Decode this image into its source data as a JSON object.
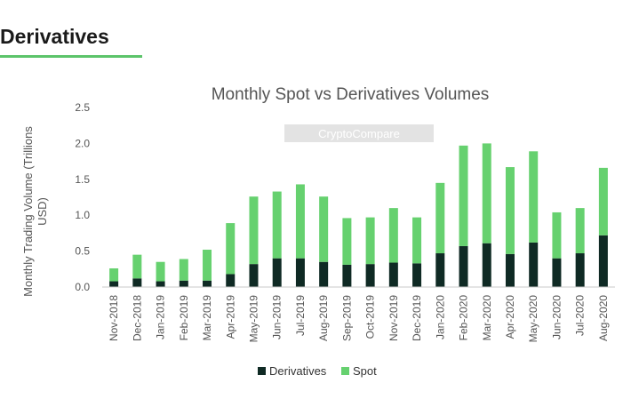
{
  "header": {
    "title": "Derivatives"
  },
  "watermark": "CryptoCompare",
  "colors": {
    "derivatives": "#0f2a24",
    "spot": "#66d16f",
    "accent": "#5cc46a"
  },
  "chart_data": {
    "type": "bar",
    "stacked": true,
    "title": "Monthly Spot vs Derivatives Volumes",
    "xlabel": "",
    "ylabel": "Monthly Trading Volume (Trillions USD)",
    "ylim": [
      0,
      2.5
    ],
    "yticks": [
      "0.0",
      "0.5",
      "1.0",
      "1.5",
      "2.0",
      "2.5"
    ],
    "grid": false,
    "legend": "bottom-center",
    "categories": [
      "Nov-2018",
      "Dec-2018",
      "Jan-2019",
      "Feb-2019",
      "Mar-2019",
      "Apr-2019",
      "May-2019",
      "Jun-2019",
      "Jul-2019",
      "Aug-2019",
      "Sep-2019",
      "Oct-2019",
      "Nov-2019",
      "Dec-2019",
      "Jan-2020",
      "Feb-2020",
      "Mar-2020",
      "Apr-2020",
      "May-2020",
      "Jun-2020",
      "Jul-2020",
      "Aug-2020"
    ],
    "series": [
      {
        "name": "Derivatives",
        "values": [
          0.08,
          0.12,
          0.08,
          0.09,
          0.09,
          0.18,
          0.32,
          0.4,
          0.4,
          0.35,
          0.31,
          0.32,
          0.34,
          0.33,
          0.47,
          0.57,
          0.61,
          0.46,
          0.62,
          0.4,
          0.47,
          0.72
        ]
      },
      {
        "name": "Spot",
        "values": [
          0.18,
          0.33,
          0.27,
          0.3,
          0.43,
          0.71,
          0.94,
          0.93,
          1.03,
          0.91,
          0.65,
          0.65,
          0.76,
          0.64,
          0.98,
          1.4,
          1.39,
          1.21,
          1.27,
          0.64,
          0.63,
          0.94
        ]
      }
    ]
  }
}
